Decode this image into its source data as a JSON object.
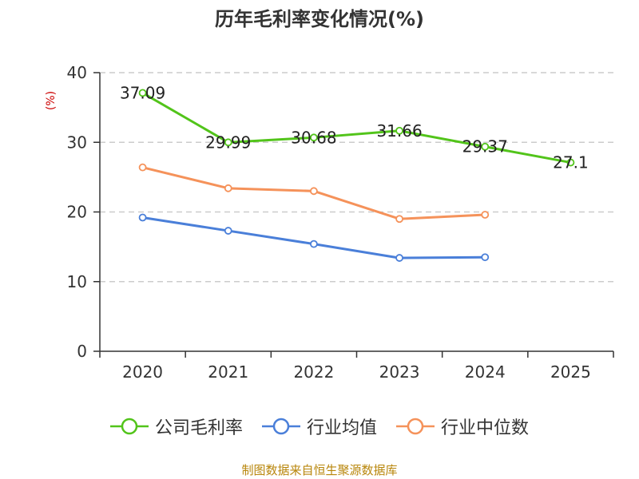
{
  "chart_data": {
    "type": "line",
    "title": "历年毛利率变化情况(%)",
    "ylabel": "(%)",
    "xlabel": "",
    "categories": [
      "2020",
      "2021",
      "2022",
      "2023",
      "2024",
      "2025"
    ],
    "ylim": [
      0,
      40
    ],
    "yticks": [
      0,
      10,
      20,
      30,
      40
    ],
    "grid": true,
    "legend_position": "bottom",
    "series": [
      {
        "name": "公司毛利率",
        "color": "#52c41a",
        "values": [
          37.09,
          29.99,
          30.68,
          31.66,
          29.37,
          27.1
        ],
        "labels": [
          "37.09",
          "29.99",
          "30.68",
          "31.66",
          "29.37",
          "27.1"
        ],
        "show_labels": true
      },
      {
        "name": "行业均值",
        "color": "#4a7fd9",
        "values": [
          19.2,
          17.3,
          15.4,
          13.4,
          13.5,
          null
        ],
        "show_labels": false
      },
      {
        "name": "行业中位数",
        "color": "#f5925a",
        "values": [
          26.4,
          23.4,
          23.0,
          19.0,
          19.6,
          null
        ],
        "show_labels": false
      }
    ]
  },
  "source": "制图数据来自恒生聚源数据库",
  "colors": {
    "axis": "#333333",
    "grid": "#cccccc",
    "unit": "#cc0000"
  }
}
